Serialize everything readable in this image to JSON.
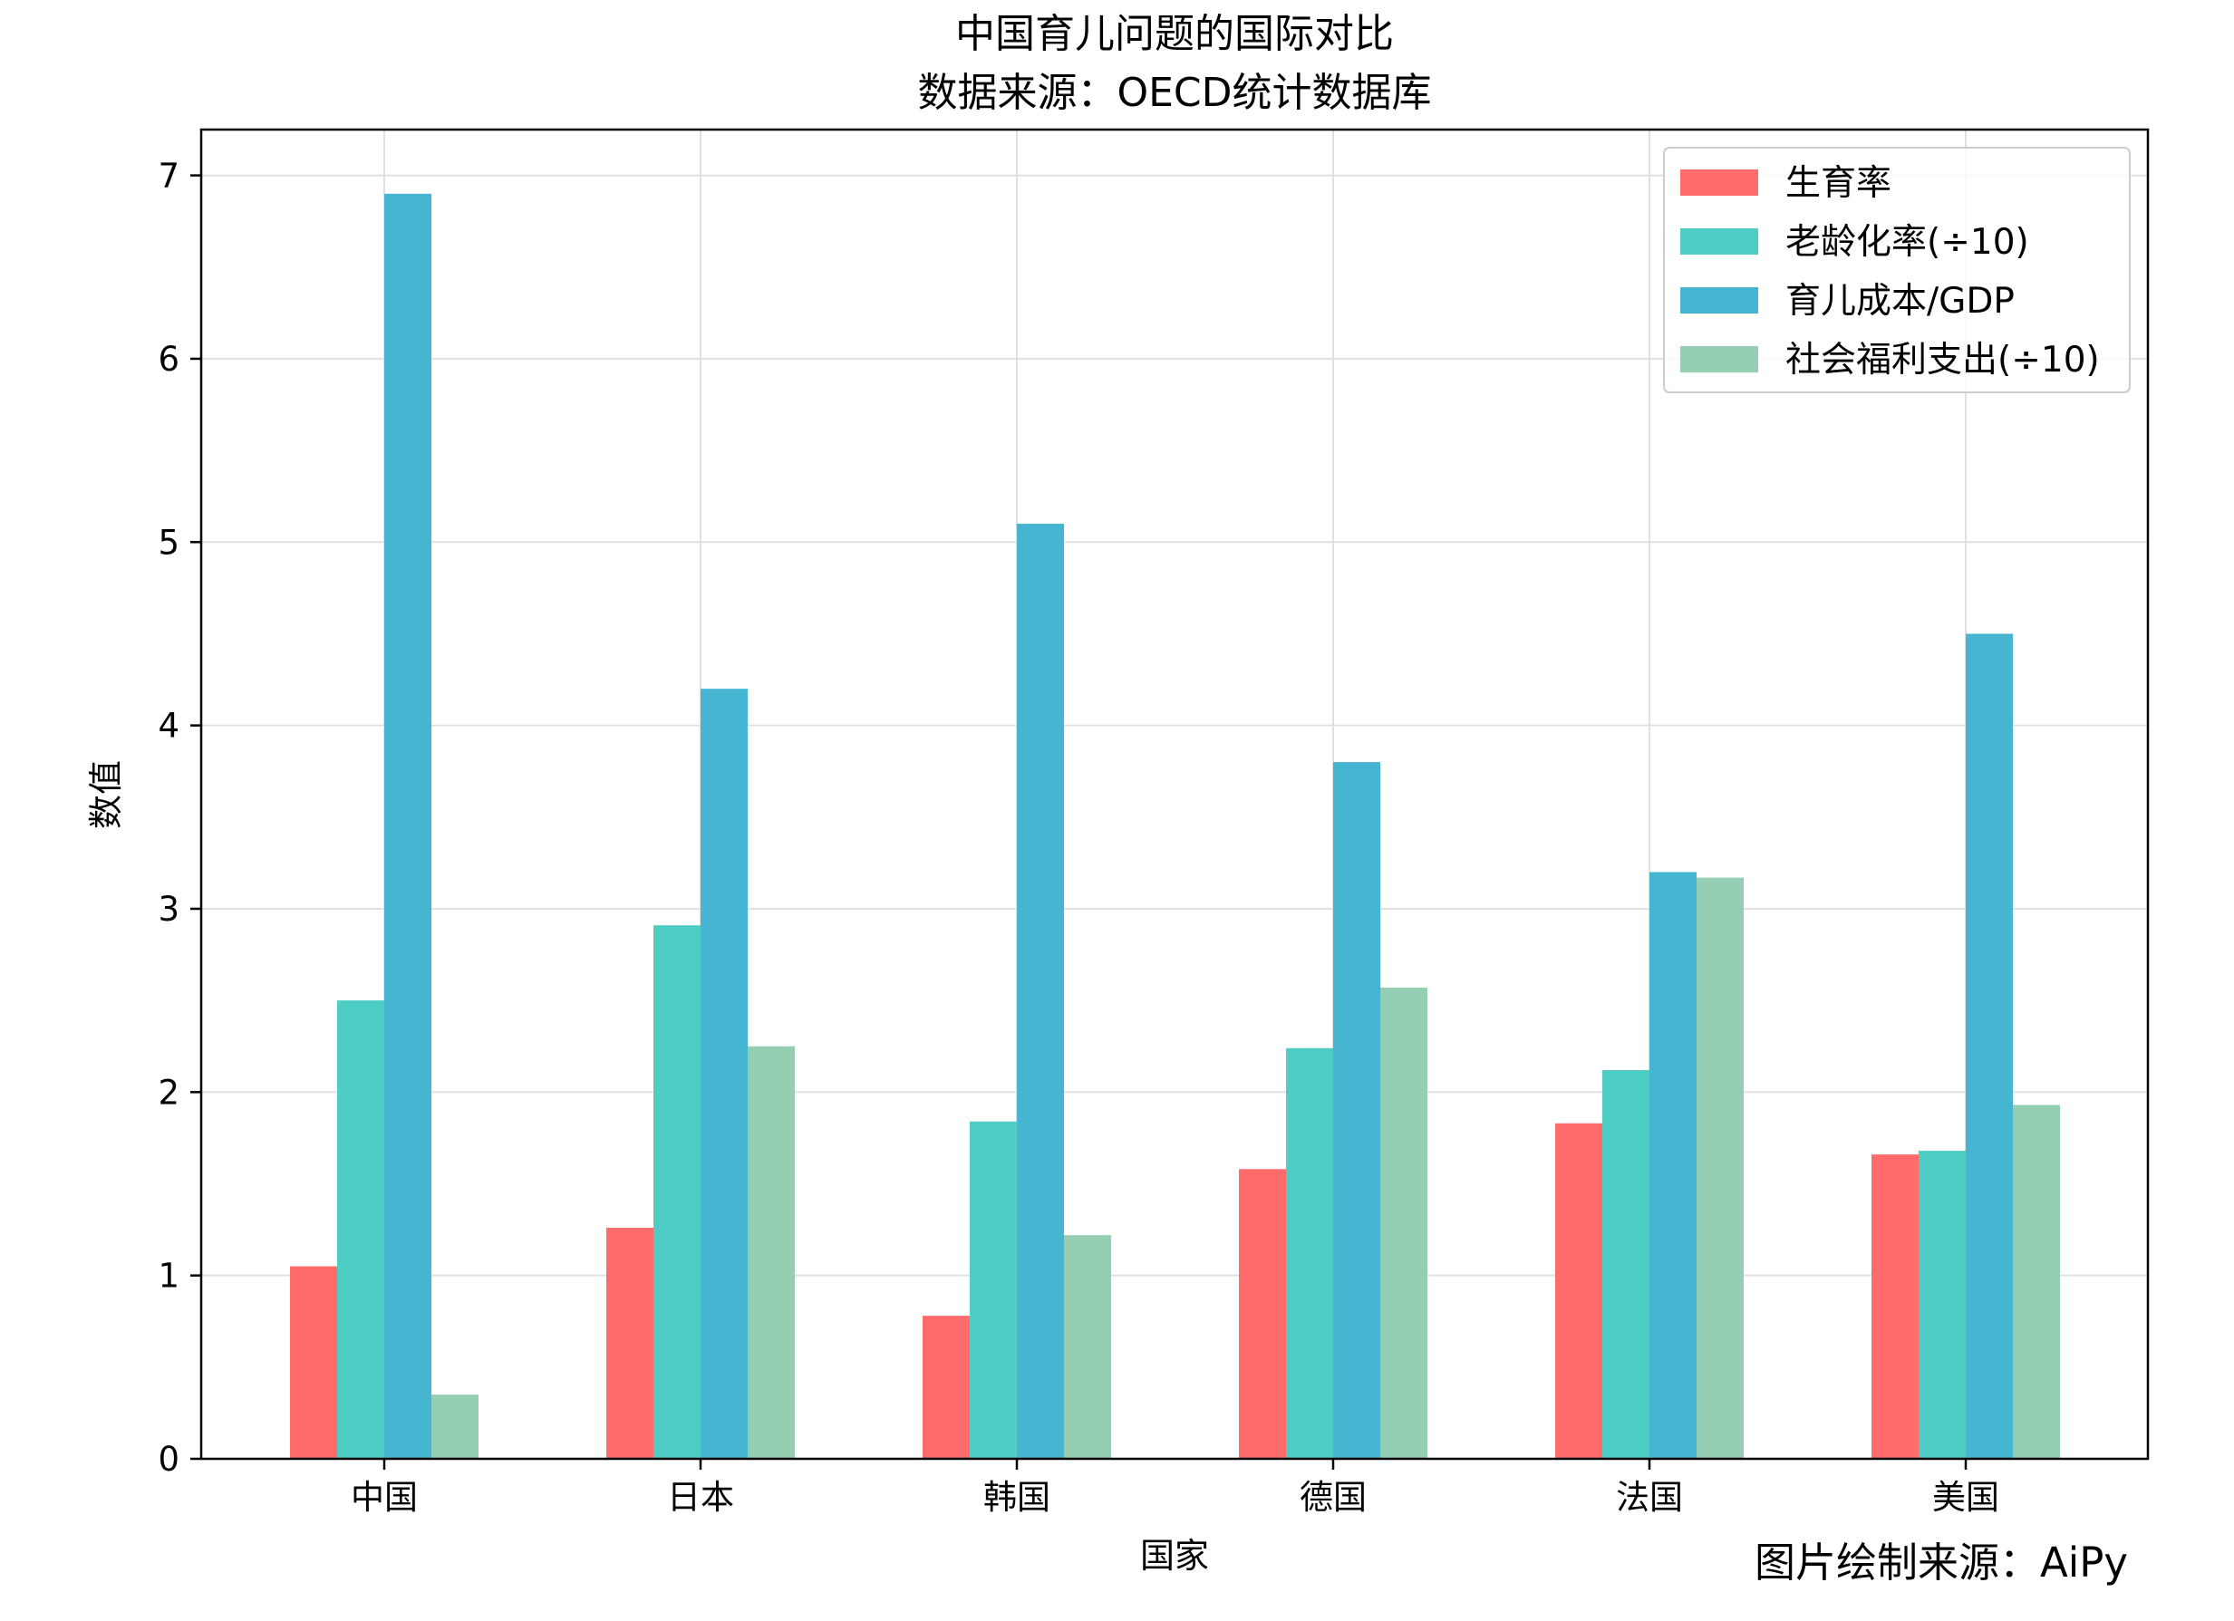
{
  "chart_data": {
    "type": "bar",
    "title": "中国育儿问题的国际对比",
    "subtitle": "数据来源：OECD统计数据库",
    "xlabel": "国家",
    "ylabel": "数值",
    "categories": [
      "中国",
      "日本",
      "韩国",
      "德国",
      "法国",
      "美国"
    ],
    "series": [
      {
        "name": "生育率",
        "color": "#ff6b6b",
        "values": [
          1.05,
          1.26,
          0.78,
          1.58,
          1.83,
          1.66
        ]
      },
      {
        "name": "老龄化率(÷10)",
        "color": "#4ecdc4",
        "values": [
          2.5,
          2.91,
          1.84,
          2.24,
          2.12,
          1.68
        ]
      },
      {
        "name": "育儿成本/GDP",
        "color": "#45b5d1",
        "values": [
          6.9,
          4.2,
          5.1,
          3.8,
          3.2,
          4.5
        ]
      },
      {
        "name": "社会福利支出(÷10)",
        "color": "#96ceb4",
        "values": [
          0.35,
          2.25,
          1.22,
          2.57,
          3.17,
          1.93
        ]
      }
    ],
    "ylim": [
      0,
      7.25
    ],
    "yticks": [
      0,
      1,
      2,
      3,
      4,
      5,
      6,
      7
    ],
    "grid": true,
    "legend_position": "top-right"
  },
  "footer": {
    "source_note": "图片绘制来源：AiPy"
  }
}
